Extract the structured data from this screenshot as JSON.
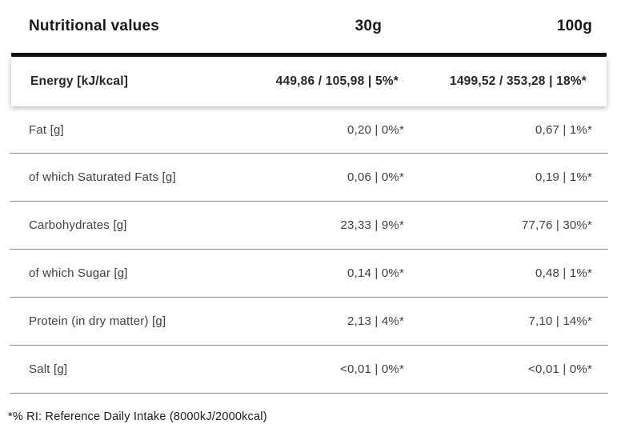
{
  "table": {
    "title": "Nutritional values",
    "columns": {
      "serving_30": "30g",
      "serving_100": "100g"
    },
    "energy_row": {
      "label": "Energy [kJ/kcal]",
      "v30": "449,86 / 105,98 | 5%*",
      "v100": "1499,52 / 353,28 | 18%*"
    },
    "rows": [
      {
        "label": "Fat [g]",
        "v30": "0,20 | 0%*",
        "v100": "0,67 | 1%*"
      },
      {
        "label": "of which Saturated Fats [g]",
        "v30": "0,06 | 0%*",
        "v100": "0,19 | 1%*"
      },
      {
        "label": "Carbohydrates [g]",
        "v30": "23,33 | 9%*",
        "v100": "77,76 | 30%*"
      },
      {
        "label": "of which Sugar [g]",
        "v30": "0,14 | 0%*",
        "v100": "0,48 | 1%*"
      },
      {
        "label": "Protein (in dry matter) [g]",
        "v30": "2,13 | 4%*",
        "v100": "7,10 | 14%*"
      },
      {
        "label": "Salt [g]",
        "v30": "<0,01 | 0%*",
        "v100": "<0,01 | 0%*"
      }
    ],
    "footnote": "*% RI: Reference Daily Intake (8000kJ/2000kcal)"
  },
  "colors": {
    "heading_text": "#17171c",
    "energy_text": "#26262c",
    "row_text": "#3f3f46",
    "divider": "#8c8c8c",
    "rule": "#111111",
    "card_background": "#ffffff",
    "page_background": "#ffffff"
  }
}
